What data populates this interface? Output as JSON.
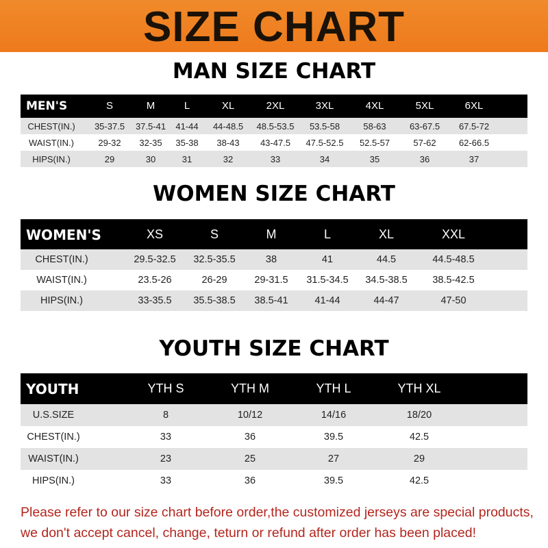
{
  "banner": {
    "title": "SIZE CHART"
  },
  "men": {
    "title": "MAN SIZE CHART",
    "header": [
      "MEN'S",
      "S",
      "M",
      "L",
      "XL",
      "2XL",
      "3XL",
      "4XL",
      "5XL",
      "6XL"
    ],
    "rows": [
      [
        "CHEST(IN.)",
        "35-37.5",
        "37.5-41",
        "41-44",
        "44-48.5",
        "48.5-53.5",
        "53.5-58",
        "58-63",
        "63-67.5",
        "67.5-72"
      ],
      [
        "WAIST(IN.)",
        "29-32",
        "32-35",
        "35-38",
        "38-43",
        "43-47.5",
        "47.5-52.5",
        "52.5-57",
        "57-62",
        "62-66.5"
      ],
      [
        "HIPS(IN.)",
        "29",
        "30",
        "31",
        "32",
        "33",
        "34",
        "35",
        "36",
        "37"
      ]
    ]
  },
  "women": {
    "title": "WOMEN SIZE CHART",
    "header": [
      "WOMEN'S",
      "XS",
      "S",
      "M",
      "L",
      "XL",
      "XXL"
    ],
    "rows": [
      [
        "CHEST(IN.)",
        "29.5-32.5",
        "32.5-35.5",
        "38",
        "41",
        "44.5",
        "44.5-48.5"
      ],
      [
        "WAIST(IN.)",
        "23.5-26",
        "26-29",
        "29-31.5",
        "31.5-34.5",
        "34.5-38.5",
        "38.5-42.5"
      ],
      [
        "HIPS(IN.)",
        "33-35.5",
        "35.5-38.5",
        "38.5-41",
        "41-44",
        "44-47",
        "47-50"
      ]
    ]
  },
  "youth": {
    "title": "YOUTH SIZE CHART",
    "header": [
      "YOUTH",
      "YTH S",
      "YTH M",
      "YTH L",
      "YTH XL"
    ],
    "rows": [
      [
        "U.S.SIZE",
        "8",
        "10/12",
        "14/16",
        "18/20"
      ],
      [
        "CHEST(IN.)",
        "33",
        "36",
        "39.5",
        "42.5"
      ],
      [
        "WAIST(IN.)",
        "23",
        "25",
        "27",
        "29"
      ],
      [
        "HIPS(IN.)",
        "33",
        "36",
        "39.5",
        "42.5"
      ]
    ]
  },
  "notice": {
    "line1": "Please refer to our size chart before order,the customized jerseys are special products,",
    "line2": "we don't accept cancel, change, teturn or refund after order has been placed!"
  },
  "colors": {
    "banner": "#ee7a1c",
    "header_row": "#000000",
    "stripe": "#e3e3e3",
    "notice": "#b3261e"
  }
}
